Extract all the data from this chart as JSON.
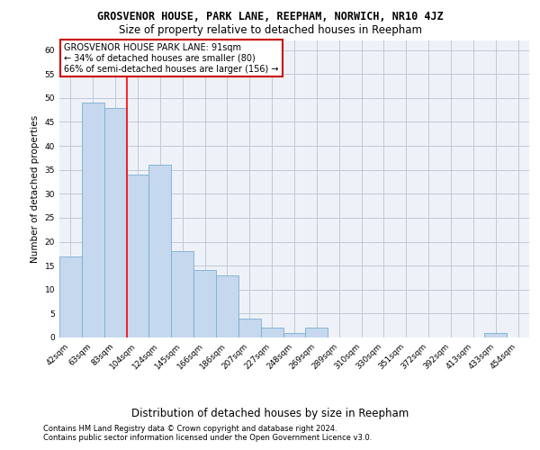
{
  "title": "GROSVENOR HOUSE, PARK LANE, REEPHAM, NORWICH, NR10 4JZ",
  "subtitle": "Size of property relative to detached houses in Reepham",
  "xlabel_bottom": "Distribution of detached houses by size in Reepham",
  "ylabel": "Number of detached properties",
  "categories": [
    "42sqm",
    "63sqm",
    "83sqm",
    "104sqm",
    "124sqm",
    "145sqm",
    "166sqm",
    "186sqm",
    "207sqm",
    "227sqm",
    "248sqm",
    "269sqm",
    "289sqm",
    "310sqm",
    "330sqm",
    "351sqm",
    "372sqm",
    "392sqm",
    "413sqm",
    "433sqm",
    "454sqm"
  ],
  "values": [
    17,
    49,
    48,
    34,
    36,
    18,
    14,
    13,
    4,
    2,
    1,
    2,
    0,
    0,
    0,
    0,
    0,
    0,
    0,
    1,
    0
  ],
  "bar_color": "#c5d8ed",
  "bar_edge_color": "#7aaed0",
  "red_line_index": 2.5,
  "annotation_text": "GROSVENOR HOUSE PARK LANE: 91sqm\n← 34% of detached houses are smaller (80)\n66% of semi-detached houses are larger (156) →",
  "annotation_box_color": "#ffffff",
  "annotation_box_edge_color": "#cc0000",
  "ylim": [
    0,
    62
  ],
  "yticks": [
    0,
    5,
    10,
    15,
    20,
    25,
    30,
    35,
    40,
    45,
    50,
    55,
    60
  ],
  "grid_color": "#c0c8d8",
  "footer1": "Contains HM Land Registry data © Crown copyright and database right 2024.",
  "footer2": "Contains public sector information licensed under the Open Government Licence v3.0.",
  "bg_color": "#eef2f8",
  "title_fontsize": 8.5,
  "subtitle_fontsize": 8.5,
  "ylabel_fontsize": 7.5,
  "annot_fontsize": 7,
  "tick_fontsize": 6.5,
  "footer_fontsize": 6
}
